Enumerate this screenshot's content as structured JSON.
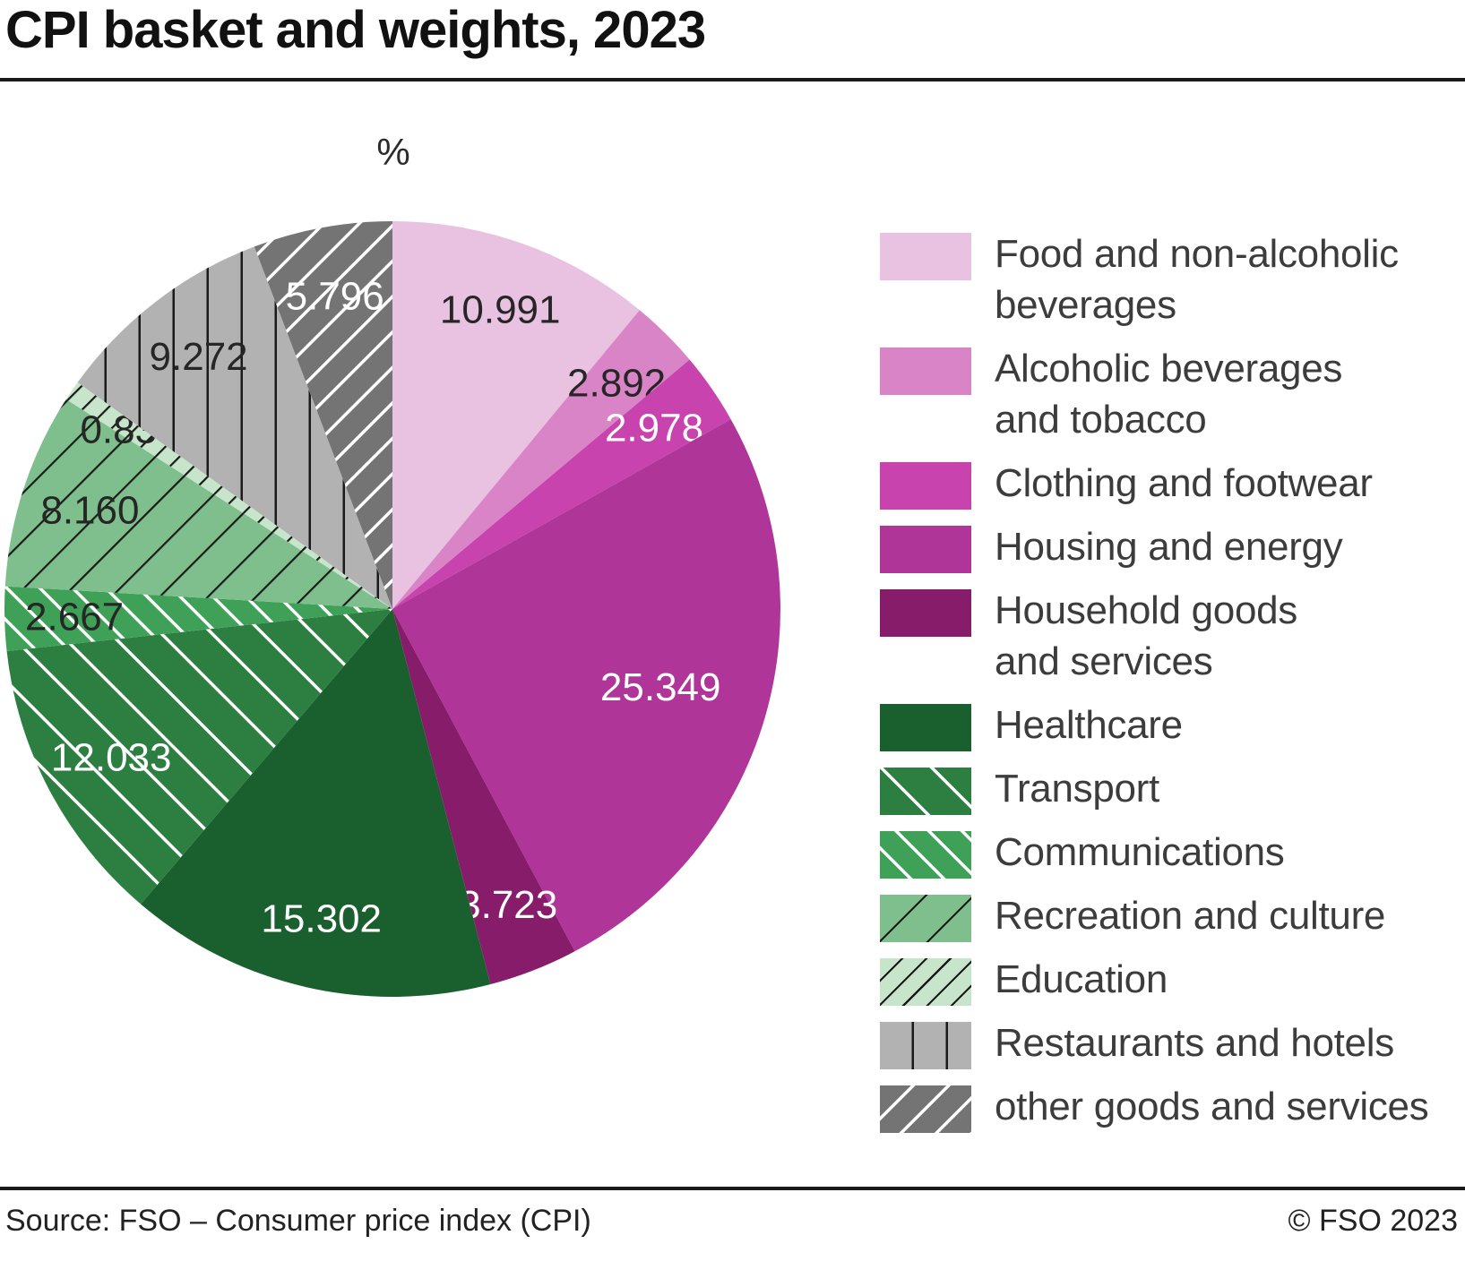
{
  "page": {
    "title": "CPI basket and weights, 2023",
    "unit_label": "%",
    "source": "Source: FSO – Consumer price index (CPI)",
    "copyright": "© FSO 2023"
  },
  "chart_data": {
    "type": "pie",
    "title": "CPI basket and weights, 2023",
    "unit": "%",
    "start_angle_deg": 0,
    "direction": "clockwise",
    "legend_position": "right",
    "total": 100,
    "slices": [
      {
        "label": "Food and non-alcoholic beverages",
        "legend_lines": [
          "Food and non-alcoholic",
          "beverages"
        ],
        "value": 10.991,
        "value_label": "10.991",
        "color": "#e9c2e1",
        "pattern": "solid",
        "stripe_color": null,
        "text_color": "#262626"
      },
      {
        "label": "Alcoholic beverages and tobacco",
        "legend_lines": [
          "Alcoholic beverages",
          "and tobacco"
        ],
        "value": 2.892,
        "value_label": "2.892",
        "color": "#da84c8",
        "pattern": "solid",
        "stripe_color": null,
        "text_color": "#262626"
      },
      {
        "label": "Clothing and footwear",
        "legend_lines": [
          "Clothing and footwear"
        ],
        "value": 2.978,
        "value_label": "2.978",
        "color": "#c843ad",
        "pattern": "solid",
        "stripe_color": null,
        "text_color": "#ffffff"
      },
      {
        "label": "Housing and energy",
        "legend_lines": [
          "Housing and energy"
        ],
        "value": 25.349,
        "value_label": "25.349",
        "color": "#af3599",
        "pattern": "solid",
        "stripe_color": null,
        "text_color": "#ffffff"
      },
      {
        "label": "Household goods and services",
        "legend_lines": [
          "Household goods",
          "and services"
        ],
        "value": 3.723,
        "value_label": "3.723",
        "color": "#871d6a",
        "pattern": "solid",
        "stripe_color": null,
        "text_color": "#ffffff"
      },
      {
        "label": "Healthcare",
        "legend_lines": [
          "Healthcare"
        ],
        "value": 15.302,
        "value_label": "15.302",
        "color": "#1a5f2e",
        "pattern": "solid",
        "stripe_color": null,
        "text_color": "#ffffff"
      },
      {
        "label": "Transport",
        "legend_lines": [
          "Transport"
        ],
        "value": 12.033,
        "value_label": "12.033",
        "color": "#2d7f41",
        "pattern": "diag-down-white",
        "stripe_color": "#ffffff",
        "text_color": "#ffffff"
      },
      {
        "label": "Communications",
        "legend_lines": [
          "Communications"
        ],
        "value": 2.667,
        "value_label": "2.667",
        "color": "#3ea157",
        "pattern": "diag-down-white-dense",
        "stripe_color": "#ffffff",
        "text_color": "#262626"
      },
      {
        "label": "Recreation and culture",
        "legend_lines": [
          "Recreation and culture"
        ],
        "value": 8.16,
        "value_label": "8.160",
        "color": "#7fbf8d",
        "pattern": "diag-up-black",
        "stripe_color": "#1a1a1a",
        "text_color": "#262626"
      },
      {
        "label": "Education",
        "legend_lines": [
          "Education"
        ],
        "value": 0.837,
        "value_label": "0.837",
        "color": "#c7e5cb",
        "pattern": "diag-up-black-dense",
        "stripe_color": "#1a1a1a",
        "text_color": "#262626"
      },
      {
        "label": "Restaurants and hotels",
        "legend_lines": [
          "Restaurants and hotels"
        ],
        "value": 9.272,
        "value_label": "9.272",
        "color": "#b2b2b2",
        "pattern": "vertical-black",
        "stripe_color": "#1a1a1a",
        "text_color": "#262626"
      },
      {
        "label": "other goods and services",
        "legend_lines": [
          "other goods and services"
        ],
        "value": 5.796,
        "value_label": "5.796",
        "color": "#747474",
        "pattern": "diag-up-white",
        "stripe_color": "#ffffff",
        "text_color": "#ffffff"
      }
    ]
  }
}
